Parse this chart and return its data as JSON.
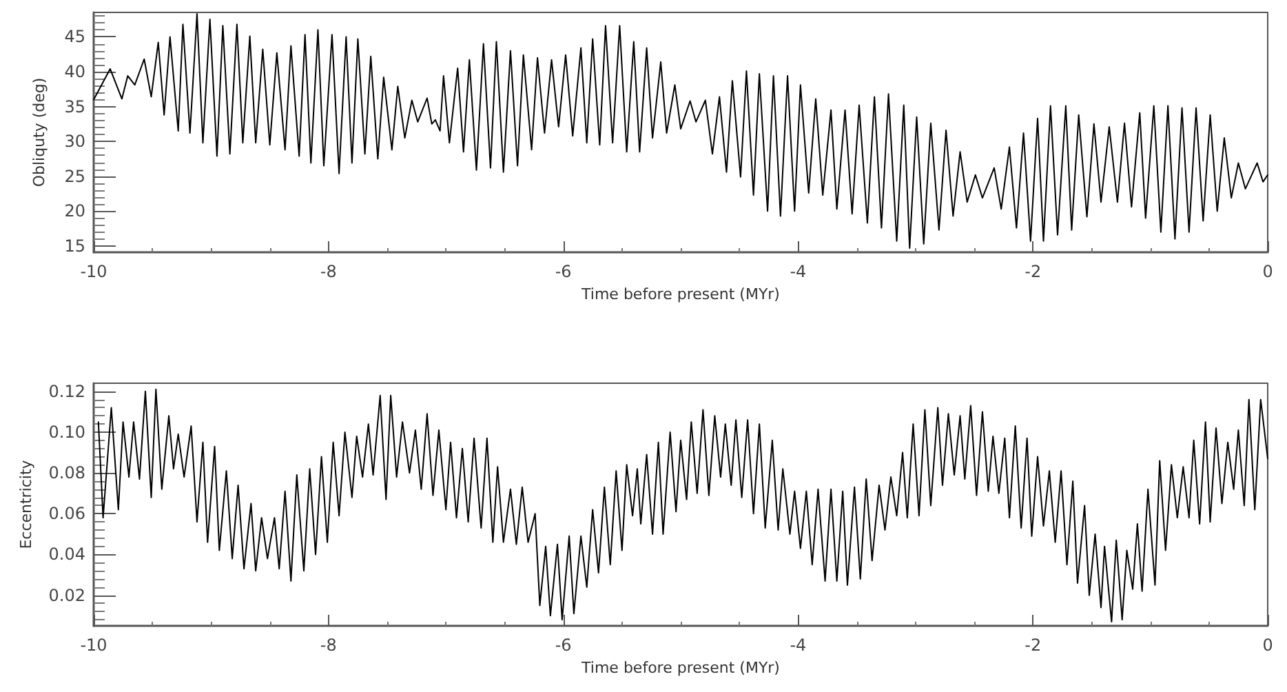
{
  "chart_data": [
    {
      "type": "line",
      "xlabel": "Time before present (MYr)",
      "ylabel": "Obliquty (deg)",
      "xlim": [
        -10,
        0
      ],
      "ylim": [
        14.1,
        48.5
      ],
      "xticks": [
        -10,
        -8,
        -6,
        -4,
        -2,
        0
      ],
      "yticks": [
        15,
        20,
        25,
        30,
        35,
        40,
        45
      ],
      "grid": false,
      "marker": "none",
      "series": [
        {
          "color": "#000000",
          "x": [
            -10.0,
            -9.86,
            -9.76,
            -9.71,
            -9.65,
            -9.57,
            -9.51,
            -9.45,
            -9.4,
            -9.35,
            -9.28,
            -9.24,
            -9.18,
            -9.12,
            -9.07,
            -9.01,
            -8.95,
            -8.9,
            -8.84,
            -8.78,
            -8.73,
            -8.67,
            -8.62,
            -8.56,
            -8.5,
            -8.44,
            -8.37,
            -8.32,
            -8.25,
            -8.2,
            -8.15,
            -8.09,
            -8.04,
            -7.97,
            -7.91,
            -7.85,
            -7.8,
            -7.75,
            -7.69,
            -7.64,
            -7.58,
            -7.53,
            -7.46,
            -7.41,
            -7.35,
            -7.29,
            -7.24,
            -7.16,
            -7.12,
            -7.09,
            -7.05,
            -7.02,
            -6.97,
            -6.9,
            -6.85,
            -6.8,
            -6.74,
            -6.68,
            -6.62,
            -6.57,
            -6.51,
            -6.45,
            -6.39,
            -6.34,
            -6.27,
            -6.22,
            -6.16,
            -6.1,
            -6.04,
            -5.98,
            -5.92,
            -5.85,
            -5.8,
            -5.75,
            -5.69,
            -5.64,
            -5.58,
            -5.52,
            -5.46,
            -5.4,
            -5.35,
            -5.29,
            -5.24,
            -5.17,
            -5.12,
            -5.05,
            -5.0,
            -4.92,
            -4.87,
            -4.79,
            -4.73,
            -4.67,
            -4.61,
            -4.56,
            -4.49,
            -4.44,
            -4.38,
            -4.33,
            -4.26,
            -4.21,
            -4.15,
            -4.09,
            -4.03,
            -3.98,
            -3.91,
            -3.85,
            -3.79,
            -3.72,
            -3.67,
            -3.6,
            -3.54,
            -3.48,
            -3.41,
            -3.35,
            -3.29,
            -3.23,
            -3.16,
            -3.1,
            -3.05,
            -2.99,
            -2.93,
            -2.87,
            -2.8,
            -2.74,
            -2.68,
            -2.62,
            -2.56,
            -2.49,
            -2.43,
            -2.33,
            -2.27,
            -2.2,
            -2.14,
            -2.08,
            -2.02,
            -1.96,
            -1.91,
            -1.85,
            -1.79,
            -1.72,
            -1.67,
            -1.61,
            -1.54,
            -1.48,
            -1.42,
            -1.35,
            -1.28,
            -1.22,
            -1.16,
            -1.09,
            -1.04,
            -0.97,
            -0.91,
            -0.85,
            -0.79,
            -0.73,
            -0.67,
            -0.61,
            -0.55,
            -0.49,
            -0.43,
            -0.37,
            -0.31,
            -0.25,
            -0.19,
            -0.09,
            -0.04,
            0.0
          ],
          "values": [
            36,
            40.4,
            36.1,
            39.4,
            38.1,
            41.8,
            36.4,
            44.2,
            33.8,
            45,
            31.5,
            46.8,
            31.2,
            48.3,
            29.8,
            47.5,
            27.9,
            46.6,
            28.2,
            46.8,
            29.8,
            45.1,
            29.8,
            43.2,
            29.5,
            42.7,
            28.8,
            43.7,
            27.9,
            45.3,
            26.9,
            46,
            26.5,
            45.3,
            25.4,
            45,
            26.9,
            44.7,
            28.2,
            42.2,
            27.5,
            39.2,
            28.8,
            37.9,
            30.5,
            35.9,
            32.8,
            36.2,
            32.5,
            33.1,
            31.5,
            39.4,
            29.8,
            40.5,
            28.5,
            41.7,
            25.9,
            44,
            26.2,
            44.3,
            25.6,
            43,
            26.5,
            42.4,
            28.8,
            42,
            31.2,
            41.7,
            32.1,
            42.4,
            30.8,
            43.4,
            29.8,
            44.7,
            29.5,
            46.6,
            29.8,
            46.6,
            28.5,
            44.3,
            28.5,
            43.4,
            30.5,
            41.4,
            31.2,
            38.1,
            31.8,
            35.8,
            32.8,
            35.9,
            28.2,
            36.4,
            25.6,
            38.7,
            24.9,
            40.1,
            22.3,
            39.7,
            20,
            39.4,
            19.3,
            39.4,
            20,
            38.1,
            22.6,
            36.1,
            22.3,
            34.5,
            20.3,
            34.5,
            19.6,
            35.2,
            18.3,
            36.4,
            17.6,
            36.8,
            15.7,
            35.2,
            14.7,
            33.5,
            15.3,
            32.6,
            17.3,
            31.6,
            19.3,
            28.5,
            21.3,
            25.2,
            21.9,
            26.2,
            20.3,
            29.2,
            17.6,
            31.2,
            15.7,
            33.3,
            15.7,
            35.1,
            16.6,
            35.1,
            17.3,
            33.8,
            19.2,
            32.5,
            21.3,
            32.1,
            21.3,
            32.6,
            20.6,
            34.1,
            19,
            35.1,
            17,
            35.1,
            16,
            34.8,
            17,
            34.8,
            18.6,
            33.8,
            20,
            30.5,
            21.9,
            26.9,
            23.2,
            26.9,
            24.2,
            25.2
          ]
        }
      ]
    },
    {
      "type": "line",
      "xlabel": "Time before present (MYr)",
      "ylabel": "Eccentricity",
      "xlim": [
        -10,
        0
      ],
      "ylim": [
        0.005,
        0.124
      ],
      "xticks": [
        -10,
        -8,
        -6,
        -4,
        -2,
        0
      ],
      "yticks": [
        0.02,
        0.04,
        0.06,
        0.08,
        {
          "value": 0.1,
          "label": "0.10"
        },
        0.12
      ],
      "grid": false,
      "marker": "none",
      "series": [
        {
          "color": "#000000",
          "x": [
            -9.96,
            -9.92,
            -9.85,
            -9.79,
            -9.75,
            -9.7,
            -9.66,
            -9.61,
            -9.56,
            -9.51,
            -9.47,
            -9.42,
            -9.36,
            -9.32,
            -9.28,
            -9.23,
            -9.17,
            -9.12,
            -9.07,
            -9.03,
            -8.97,
            -8.93,
            -8.87,
            -8.82,
            -8.77,
            -8.72,
            -8.66,
            -8.62,
            -8.57,
            -8.52,
            -8.46,
            -8.42,
            -8.37,
            -8.32,
            -8.27,
            -8.21,
            -8.16,
            -8.11,
            -8.06,
            -8.01,
            -7.96,
            -7.91,
            -7.86,
            -7.8,
            -7.76,
            -7.71,
            -7.66,
            -7.62,
            -7.56,
            -7.51,
            -7.47,
            -7.42,
            -7.37,
            -7.31,
            -7.26,
            -7.21,
            -7.16,
            -7.11,
            -7.06,
            -7.0,
            -6.96,
            -6.91,
            -6.86,
            -6.81,
            -6.76,
            -6.7,
            -6.65,
            -6.6,
            -6.56,
            -6.51,
            -6.45,
            -6.4,
            -6.35,
            -6.3,
            -6.24,
            -6.2,
            -6.15,
            -6.11,
            -6.05,
            -6.01,
            -5.95,
            -5.91,
            -5.85,
            -5.8,
            -5.75,
            -5.7,
            -5.65,
            -5.6,
            -5.55,
            -5.5,
            -5.46,
            -5.41,
            -5.37,
            -5.34,
            -5.29,
            -5.24,
            -5.19,
            -5.15,
            -5.09,
            -5.04,
            -5.0,
            -4.95,
            -4.91,
            -4.86,
            -4.81,
            -4.76,
            -4.71,
            -4.66,
            -4.62,
            -4.57,
            -4.53,
            -4.48,
            -4.43,
            -4.38,
            -4.33,
            -4.28,
            -4.22,
            -4.17,
            -4.13,
            -4.07,
            -4.03,
            -3.98,
            -3.93,
            -3.88,
            -3.83,
            -3.77,
            -3.72,
            -3.67,
            -3.62,
            -3.58,
            -3.52,
            -3.47,
            -3.42,
            -3.37,
            -3.31,
            -3.26,
            -3.21,
            -3.16,
            -3.11,
            -3.07,
            -3.02,
            -2.97,
            -2.92,
            -2.87,
            -2.81,
            -2.77,
            -2.72,
            -2.67,
            -2.62,
            -2.58,
            -2.53,
            -2.48,
            -2.43,
            -2.38,
            -2.34,
            -2.29,
            -2.24,
            -2.2,
            -2.15,
            -2.1,
            -2.05,
            -2.01,
            -1.96,
            -1.91,
            -1.86,
            -1.81,
            -1.76,
            -1.71,
            -1.66,
            -1.62,
            -1.56,
            -1.52,
            -1.47,
            -1.42,
            -1.39,
            -1.33,
            -1.29,
            -1.24,
            -1.2,
            -1.15,
            -1.11,
            -1.07,
            -1.02,
            -0.96,
            -0.92,
            -0.87,
            -0.82,
            -0.77,
            -0.72,
            -0.67,
            -0.63,
            -0.58,
            -0.53,
            -0.49,
            -0.44,
            -0.39,
            -0.34,
            -0.29,
            -0.25,
            -0.2,
            -0.16,
            -0.11,
            -0.06,
            0.0
          ],
          "values": [
            0.105,
            0.058,
            0.112,
            0.062,
            0.105,
            0.078,
            0.105,
            0.077,
            0.12,
            0.068,
            0.121,
            0.072,
            0.108,
            0.082,
            0.099,
            0.078,
            0.103,
            0.056,
            0.095,
            0.046,
            0.093,
            0.042,
            0.081,
            0.038,
            0.074,
            0.033,
            0.065,
            0.032,
            0.058,
            0.038,
            0.058,
            0.033,
            0.071,
            0.027,
            0.079,
            0.032,
            0.082,
            0.04,
            0.088,
            0.046,
            0.095,
            0.059,
            0.1,
            0.068,
            0.098,
            0.078,
            0.104,
            0.079,
            0.118,
            0.067,
            0.118,
            0.078,
            0.105,
            0.08,
            0.101,
            0.072,
            0.109,
            0.069,
            0.101,
            0.062,
            0.095,
            0.058,
            0.092,
            0.056,
            0.097,
            0.053,
            0.097,
            0.046,
            0.083,
            0.046,
            0.072,
            0.045,
            0.073,
            0.046,
            0.06,
            0.015,
            0.044,
            0.01,
            0.045,
            0.008,
            0.049,
            0.011,
            0.049,
            0.024,
            0.062,
            0.031,
            0.073,
            0.035,
            0.081,
            0.042,
            0.084,
            0.059,
            0.082,
            0.055,
            0.089,
            0.05,
            0.095,
            0.05,
            0.1,
            0.061,
            0.096,
            0.067,
            0.105,
            0.07,
            0.111,
            0.069,
            0.108,
            0.078,
            0.104,
            0.074,
            0.106,
            0.068,
            0.106,
            0.06,
            0.104,
            0.053,
            0.096,
            0.052,
            0.082,
            0.05,
            0.071,
            0.043,
            0.071,
            0.035,
            0.072,
            0.027,
            0.072,
            0.027,
            0.071,
            0.025,
            0.073,
            0.028,
            0.077,
            0.037,
            0.074,
            0.052,
            0.078,
            0.059,
            0.09,
            0.058,
            0.104,
            0.059,
            0.111,
            0.064,
            0.112,
            0.074,
            0.109,
            0.079,
            0.108,
            0.077,
            0.113,
            0.069,
            0.11,
            0.071,
            0.098,
            0.07,
            0.097,
            0.058,
            0.103,
            0.053,
            0.097,
            0.049,
            0.088,
            0.054,
            0.081,
            0.046,
            0.081,
            0.035,
            0.076,
            0.026,
            0.064,
            0.02,
            0.05,
            0.014,
            0.044,
            0.007,
            0.047,
            0.008,
            0.042,
            0.023,
            0.055,
            0.022,
            0.072,
            0.025,
            0.086,
            0.042,
            0.084,
            0.058,
            0.083,
            0.058,
            0.096,
            0.055,
            0.105,
            0.056,
            0.102,
            0.065,
            0.095,
            0.072,
            0.101,
            0.064,
            0.116,
            0.062,
            0.116,
            0.087
          ]
        }
      ]
    }
  ]
}
